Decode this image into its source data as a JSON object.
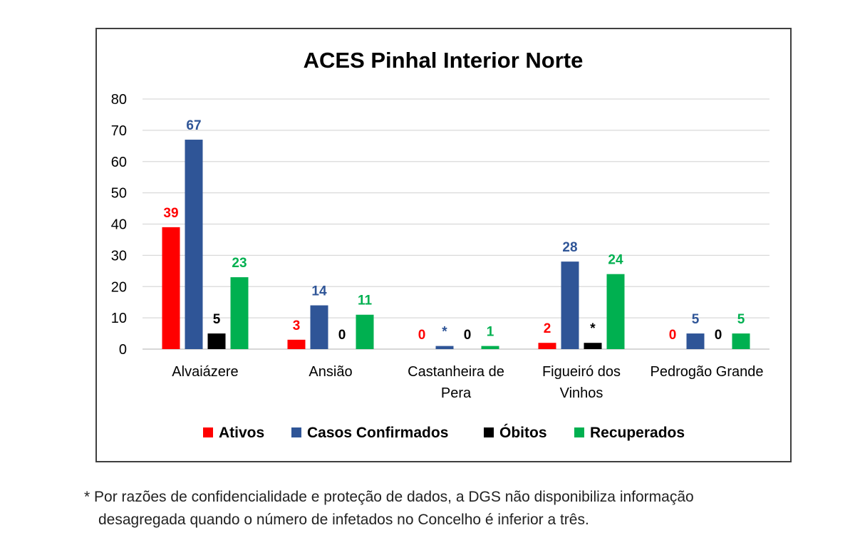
{
  "chart_data": {
    "type": "bar",
    "title": "ACES Pinhal Interior Norte",
    "xlabel": "",
    "ylabel": "",
    "ylim": [
      0,
      80
    ],
    "yticks": [
      0,
      10,
      20,
      30,
      40,
      50,
      60,
      70,
      80
    ],
    "grid": true,
    "legend_position": "bottom",
    "categories": [
      [
        "Alvaiázere"
      ],
      [
        "Ansião"
      ],
      [
        "Castanheira de",
        "Pera"
      ],
      [
        "Figueiró dos",
        "Vinhos"
      ],
      [
        "Pedrogão Grande"
      ]
    ],
    "series": [
      {
        "name": "Ativos",
        "color": "#ff0000",
        "values": [
          39,
          3,
          0,
          2,
          0
        ],
        "labels": [
          "39",
          "3",
          "0",
          "2",
          "0"
        ]
      },
      {
        "name": "Casos Confirmados",
        "color": "#2f5597",
        "values": [
          67,
          14,
          1,
          28,
          5
        ],
        "labels": [
          "67",
          "14",
          "*",
          "28",
          "5"
        ]
      },
      {
        "name": "Óbitos",
        "color": "#000000",
        "values": [
          5,
          0,
          0,
          2,
          0
        ],
        "labels": [
          "5",
          "0",
          "0",
          "*",
          "0"
        ]
      },
      {
        "name": "Recuperados",
        "color": "#00b050",
        "values": [
          23,
          11,
          1,
          24,
          5
        ],
        "labels": [
          "23",
          "11",
          "1",
          "24",
          "5"
        ]
      }
    ]
  },
  "footnote": {
    "line1": "* Por razões de confidencialidade e proteção de dados, a DGS não disponibiliza informação",
    "line2": "desagregada quando o número de infetados no Concelho é inferior a três."
  },
  "colors": {
    "frame": "#3f3f3f",
    "grid": "#d9d9d9",
    "axis_text": "#000000",
    "footnote_text": "#222222"
  }
}
